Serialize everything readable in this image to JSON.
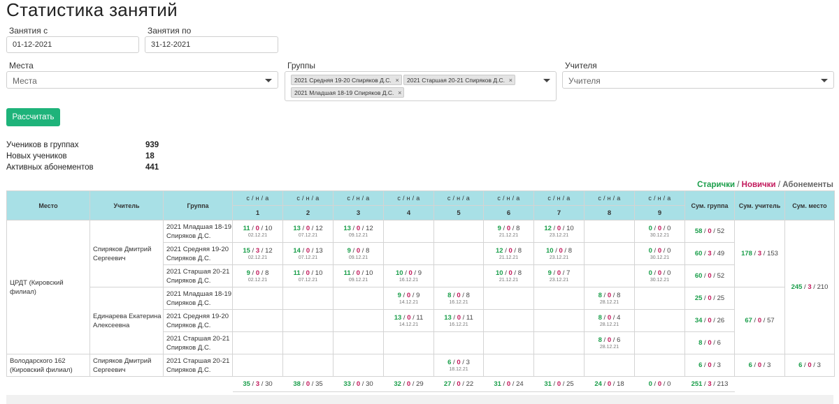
{
  "title": "Статистика занятий",
  "filters": {
    "date_from_label": "Занятия с",
    "date_from_value": "01-12-2021",
    "date_to_label": "Занятия по",
    "date_to_value": "31-12-2021",
    "places_label": "Места",
    "places_placeholder": "Места",
    "groups_label": "Группы",
    "groups_selected": [
      "2021 Средняя 19-20 Спиряков Д.С.",
      "2021 Старшая 20-21 Спиряков Д.С.",
      "2021 Младшая 18-19 Спиряков Д.С."
    ],
    "teachers_label": "Учителя",
    "teachers_placeholder": "Учителя",
    "remove_symbol": "×",
    "calculate_button": "Рассчитать"
  },
  "summary": [
    {
      "label": "Учеников в группах",
      "value": "939"
    },
    {
      "label": "Новых учеников",
      "value": "18"
    },
    {
      "label": "Активных абонементов",
      "value": "441"
    }
  ],
  "legend": {
    "old": "Старички",
    "new": "Новички",
    "subs": "Абонементы",
    "sep": " / "
  },
  "table": {
    "headers": {
      "place": "Место",
      "teacher": "Учитель",
      "group": "Группа",
      "sum_group": "Сум. группа",
      "sum_teacher": "Сум. учитель",
      "sum_place": "Сум. место",
      "sna": "с / н / а"
    },
    "lessons": [
      "1",
      "2",
      "3",
      "4",
      "5",
      "6",
      "7",
      "8",
      "9"
    ],
    "places": [
      {
        "name": "ЦРДТ (Кировский филиал)",
        "sum": [
          "245",
          "3",
          "210"
        ],
        "teachers": [
          {
            "name": "Спиряков Дмитрий Сергеевич",
            "sum": [
              "178",
              "3",
              "153"
            ],
            "groups": [
              {
                "name": "2021 Младшая 18-19 Спиряков Д.С.",
                "sum": [
                  "58",
                  "0",
                  "52"
                ],
                "cells": [
                  {
                    "v": [
                      "11",
                      "0",
                      "10"
                    ],
                    "d": "02.12.21"
                  },
                  {
                    "v": [
                      "13",
                      "0",
                      "12"
                    ],
                    "d": "07.12.21"
                  },
                  {
                    "v": [
                      "13",
                      "0",
                      "12"
                    ],
                    "d": "09.12.21"
                  },
                  null,
                  null,
                  {
                    "v": [
                      "9",
                      "0",
                      "8"
                    ],
                    "d": "21.12.21"
                  },
                  {
                    "v": [
                      "12",
                      "0",
                      "10"
                    ],
                    "d": "23.12.21"
                  },
                  null,
                  {
                    "v": [
                      "0",
                      "0",
                      "0"
                    ],
                    "d": "30.12.21"
                  }
                ]
              },
              {
                "name": "2021 Средняя 19-20 Спиряков Д.С.",
                "sum": [
                  "60",
                  "3",
                  "49"
                ],
                "cells": [
                  {
                    "v": [
                      "15",
                      "3",
                      "12"
                    ],
                    "d": "02.12.21"
                  },
                  {
                    "v": [
                      "14",
                      "0",
                      "13"
                    ],
                    "d": "07.12.21"
                  },
                  {
                    "v": [
                      "9",
                      "0",
                      "8"
                    ],
                    "d": "09.12.21"
                  },
                  null,
                  null,
                  {
                    "v": [
                      "12",
                      "0",
                      "8"
                    ],
                    "d": "21.12.21"
                  },
                  {
                    "v": [
                      "10",
                      "0",
                      "8"
                    ],
                    "d": "23.12.21"
                  },
                  null,
                  {
                    "v": [
                      "0",
                      "0",
                      "0"
                    ],
                    "d": "30.12.21"
                  }
                ]
              },
              {
                "name": "2021 Старшая 20-21 Спиряков Д.С.",
                "sum": [
                  "60",
                  "0",
                  "52"
                ],
                "cells": [
                  {
                    "v": [
                      "9",
                      "0",
                      "8"
                    ],
                    "d": "02.12.21"
                  },
                  {
                    "v": [
                      "11",
                      "0",
                      "10"
                    ],
                    "d": "07.12.21"
                  },
                  {
                    "v": [
                      "11",
                      "0",
                      "10"
                    ],
                    "d": "09.12.21"
                  },
                  {
                    "v": [
                      "10",
                      "0",
                      "9"
                    ],
                    "d": "16.12.21"
                  },
                  null,
                  {
                    "v": [
                      "10",
                      "0",
                      "8"
                    ],
                    "d": "21.12.21"
                  },
                  {
                    "v": [
                      "9",
                      "0",
                      "7"
                    ],
                    "d": "23.12.21"
                  },
                  null,
                  {
                    "v": [
                      "0",
                      "0",
                      "0"
                    ],
                    "d": "30.12.21"
                  }
                ]
              }
            ]
          },
          {
            "name": "Единарева Екатерина Алексеевна",
            "sum": [
              "67",
              "0",
              "57"
            ],
            "groups": [
              {
                "name": "2021 Младшая 18-19 Спиряков Д.С.",
                "sum": [
                  "25",
                  "0",
                  "25"
                ],
                "cells": [
                  null,
                  null,
                  null,
                  {
                    "v": [
                      "9",
                      "0",
                      "9"
                    ],
                    "d": "14.12.21"
                  },
                  {
                    "v": [
                      "8",
                      "0",
                      "8"
                    ],
                    "d": "16.12.21"
                  },
                  null,
                  null,
                  {
                    "v": [
                      "8",
                      "0",
                      "8"
                    ],
                    "d": "28.12.21"
                  },
                  null
                ]
              },
              {
                "name": "2021 Средняя 19-20 Спиряков Д.С.",
                "sum": [
                  "34",
                  "0",
                  "26"
                ],
                "cells": [
                  null,
                  null,
                  null,
                  {
                    "v": [
                      "13",
                      "0",
                      "11"
                    ],
                    "d": "14.12.21"
                  },
                  {
                    "v": [
                      "13",
                      "0",
                      "11"
                    ],
                    "d": "16.12.21"
                  },
                  null,
                  null,
                  {
                    "v": [
                      "8",
                      "0",
                      "4"
                    ],
                    "d": "28.12.21"
                  },
                  null
                ]
              },
              {
                "name": "2021 Старшая 20-21 Спиряков Д.С.",
                "sum": [
                  "8",
                  "0",
                  "6"
                ],
                "cells": [
                  null,
                  null,
                  null,
                  null,
                  null,
                  null,
                  null,
                  {
                    "v": [
                      "8",
                      "0",
                      "6"
                    ],
                    "d": "28.12.21"
                  },
                  null
                ]
              }
            ]
          }
        ]
      },
      {
        "name": "Володарского 162 (Кировский филиал)",
        "sum": [
          "6",
          "0",
          "3"
        ],
        "teachers": [
          {
            "name": "Спиряков Дмитрий Сергеевич",
            "sum": [
              "6",
              "0",
              "3"
            ],
            "groups": [
              {
                "name": "2021 Старшая 20-21 Спиряков Д.С.",
                "sum": [
                  "6",
                  "0",
                  "3"
                ],
                "cells": [
                  null,
                  null,
                  null,
                  null,
                  {
                    "v": [
                      "6",
                      "0",
                      "3"
                    ],
                    "d": "18.12.21"
                  },
                  null,
                  null,
                  null,
                  null
                ]
              }
            ]
          }
        ]
      }
    ],
    "totals": [
      [
        "35",
        "3",
        "30"
      ],
      [
        "38",
        "0",
        "35"
      ],
      [
        "33",
        "0",
        "30"
      ],
      [
        "32",
        "0",
        "29"
      ],
      [
        "27",
        "0",
        "22"
      ],
      [
        "31",
        "0",
        "24"
      ],
      [
        "31",
        "0",
        "25"
      ],
      [
        "24",
        "0",
        "18"
      ],
      [
        "0",
        "0",
        "0"
      ]
    ],
    "grand_total": [
      "251",
      "3",
      "213"
    ]
  }
}
